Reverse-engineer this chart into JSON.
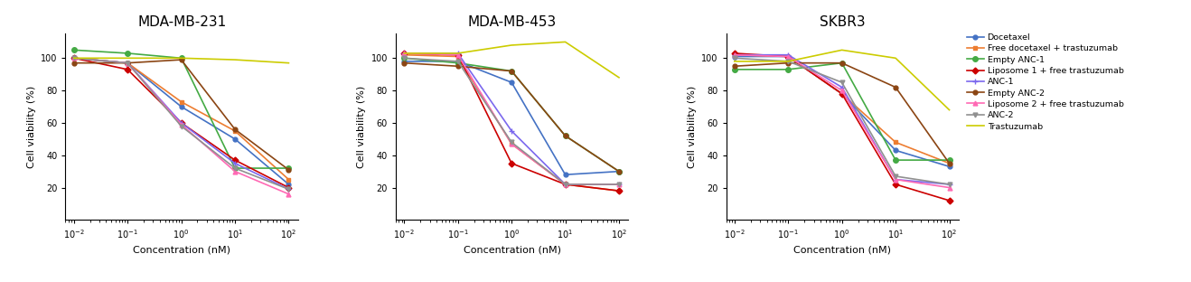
{
  "x": [
    0.01,
    0.1,
    1,
    10,
    100
  ],
  "titles": [
    "MDA-MB-231",
    "MDA-MB-453",
    "SKBR3"
  ],
  "xlabel": "Concentration (nM)",
  "ylabel": "Cell viability (%)",
  "ylim": [
    0,
    115
  ],
  "yticks": [
    20,
    40,
    60,
    80,
    100
  ],
  "series": [
    {
      "label": "Docetaxel",
      "color": "#4472C4",
      "marker": "o",
      "markersize": 3.5,
      "data": [
        [
          100,
          97,
          70,
          50,
          22
        ],
        [
          98,
          98,
          85,
          28,
          30
        ],
        [
          101,
          101,
          78,
          43,
          33
        ]
      ]
    },
    {
      "label": "Free docetaxel + trastuzumab",
      "color": "#ED7D31",
      "marker": "s",
      "markersize": 3.5,
      "data": [
        [
          100,
          97,
          73,
          55,
          25
        ],
        [
          102,
          101,
          47,
          22,
          18
        ],
        [
          102,
          101,
          78,
          48,
          35
        ]
      ]
    },
    {
      "label": "Empty ANC-1",
      "color": "#44AA44",
      "marker": "o",
      "markersize": 4,
      "data": [
        [
          105,
          103,
          100,
          32,
          32
        ],
        [
          100,
          97,
          92,
          52,
          30
        ],
        [
          93,
          93,
          97,
          37,
          37
        ]
      ]
    },
    {
      "label": "Liposome 1 + free trastuzumab",
      "color": "#CC0000",
      "marker": "D",
      "markersize": 3.5,
      "data": [
        [
          100,
          93,
          60,
          37,
          20
        ],
        [
          103,
          102,
          35,
          22,
          18
        ],
        [
          103,
          101,
          78,
          22,
          12
        ]
      ]
    },
    {
      "label": "ANC-1",
      "color": "#7B68EE",
      "marker": "+",
      "markersize": 5,
      "data": [
        [
          100,
          97,
          60,
          35,
          19
        ],
        [
          103,
          103,
          55,
          22,
          22
        ],
        [
          102,
          102,
          82,
          25,
          22
        ]
      ]
    },
    {
      "label": "Empty ANC-2",
      "color": "#8B4513",
      "marker": "o",
      "markersize": 3.5,
      "data": [
        [
          97,
          97,
          99,
          56,
          31
        ],
        [
          97,
          95,
          92,
          52,
          30
        ],
        [
          95,
          97,
          97,
          82,
          35
        ]
      ]
    },
    {
      "label": "Liposome 2 + free trastuzumab",
      "color": "#FF69B4",
      "marker": "^",
      "markersize": 3.5,
      "data": [
        [
          100,
          97,
          59,
          30,
          16
        ],
        [
          103,
          102,
          47,
          22,
          22
        ],
        [
          102,
          101,
          80,
          25,
          20
        ]
      ]
    },
    {
      "label": "ANC-2",
      "color": "#909090",
      "marker": "v",
      "markersize": 3.5,
      "data": [
        [
          100,
          97,
          58,
          32,
          19
        ],
        [
          100,
          98,
          48,
          22,
          22
        ],
        [
          100,
          98,
          85,
          27,
          22
        ]
      ]
    },
    {
      "label": "Trastuzumab",
      "color": "#CCCC00",
      "marker": null,
      "markersize": 0,
      "data": [
        [
          100,
          100,
          100,
          99,
          97
        ],
        [
          103,
          103,
          108,
          110,
          88
        ],
        [
          98,
          98,
          105,
          100,
          68
        ]
      ]
    }
  ],
  "legend_fontsize": 6.8,
  "title_fontsize": 11,
  "axis_label_fontsize": 8,
  "tick_fontsize": 7,
  "linewidth": 1.2
}
